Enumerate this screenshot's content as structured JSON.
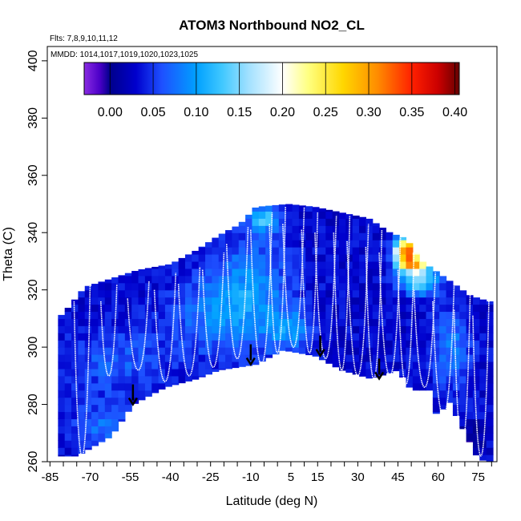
{
  "chart_data": {
    "type": "heatmap",
    "title": "ATOM3 Northbound NO2_CL",
    "annotations": {
      "flights": "Flts: 7,8,9,10,11,12",
      "dates": "MMDD: 1014,1017,1019,1020,1023,1025"
    },
    "xlabel": "Latitude (deg N)",
    "ylabel": "Theta (C)",
    "xlim": [
      -86,
      82
    ],
    "ylim": [
      260,
      405
    ],
    "x_ticks": [
      -85,
      -70,
      -55,
      -40,
      -25,
      -10,
      5,
      15,
      30,
      45,
      60,
      75
    ],
    "x_tick_labels": [
      "-85",
      "-70",
      "-55",
      "-40",
      "-25",
      "-10",
      "5",
      "15",
      "30",
      "45",
      "60",
      "75"
    ],
    "y_ticks": [
      260,
      280,
      300,
      320,
      340,
      360,
      380,
      400
    ],
    "y_tick_labels": [
      "260",
      "280",
      "300",
      "320",
      "340",
      "360",
      "380",
      "400"
    ],
    "colorbar": {
      "range": [
        -0.03,
        0.405
      ],
      "ticks": [
        0.0,
        0.05,
        0.1,
        0.15,
        0.2,
        0.25,
        0.3,
        0.35,
        0.4
      ],
      "tick_labels": [
        "0.00",
        "0.05",
        "0.10",
        "0.15",
        "0.20",
        "0.25",
        "0.30",
        "0.35",
        "0.40"
      ],
      "stops": [
        {
          "v": -0.03,
          "c": "#8a2be2"
        },
        {
          "v": -0.012,
          "c": "#4b00c8"
        },
        {
          "v": 0.0,
          "c": "#00008b"
        },
        {
          "v": 0.03,
          "c": "#0000cd"
        },
        {
          "v": 0.06,
          "c": "#1e50ff"
        },
        {
          "v": 0.1,
          "c": "#00a0ff"
        },
        {
          "v": 0.13,
          "c": "#40c8ff"
        },
        {
          "v": 0.16,
          "c": "#a0e0ff"
        },
        {
          "v": 0.2,
          "c": "#ffffff"
        },
        {
          "v": 0.23,
          "c": "#ffff80"
        },
        {
          "v": 0.27,
          "c": "#ffd700"
        },
        {
          "v": 0.31,
          "c": "#ff8c00"
        },
        {
          "v": 0.35,
          "c": "#ff2000"
        },
        {
          "v": 0.38,
          "c": "#cc0000"
        },
        {
          "v": 0.405,
          "c": "#660000"
        }
      ]
    },
    "envelope_bottom": [
      [
        -82,
        262
      ],
      [
        -75,
        262
      ],
      [
        -62,
        269
      ],
      [
        -54,
        280
      ],
      [
        -42,
        286
      ],
      [
        -30,
        289
      ],
      [
        -22,
        292
      ],
      [
        -8,
        294
      ],
      [
        2,
        299
      ],
      [
        14,
        297
      ],
      [
        24,
        292
      ],
      [
        35,
        289
      ],
      [
        45,
        292
      ],
      [
        50,
        285
      ],
      [
        58,
        285
      ],
      [
        60,
        272
      ],
      [
        63,
        283
      ],
      [
        75,
        261
      ],
      [
        79,
        260
      ]
    ],
    "envelope_top": [
      [
        -82,
        310
      ],
      [
        -78,
        314
      ],
      [
        -72,
        321
      ],
      [
        -62,
        324
      ],
      [
        -52,
        327
      ],
      [
        -40,
        329
      ],
      [
        -30,
        334
      ],
      [
        -22,
        339
      ],
      [
        -14,
        343
      ],
      [
        -8,
        349
      ],
      [
        4,
        350
      ],
      [
        14,
        349
      ],
      [
        24,
        347
      ],
      [
        34,
        345
      ],
      [
        42,
        340
      ],
      [
        48,
        338
      ],
      [
        54,
        330
      ],
      [
        60,
        326
      ],
      [
        66,
        322
      ],
      [
        72,
        318
      ],
      [
        79,
        316
      ]
    ],
    "field": {
      "base": 0.03,
      "blobs": [
        {
          "x": -24,
          "y": 312,
          "sx": 12,
          "sy": 10,
          "a": 0.045
        },
        {
          "x": -9,
          "y": 320,
          "sx": 10,
          "sy": 14,
          "a": 0.055
        },
        {
          "x": -5,
          "y": 345,
          "sx": 4,
          "sy": 3,
          "a": 0.09
        },
        {
          "x": 5,
          "y": 306,
          "sx": 6,
          "sy": 5,
          "a": 0.06
        },
        {
          "x": -60,
          "y": 295,
          "sx": 14,
          "sy": 8,
          "a": 0.035
        },
        {
          "x": -65,
          "y": 272,
          "sx": 8,
          "sy": 6,
          "a": 0.045
        },
        {
          "x": 48,
          "y": 334,
          "sx": 3,
          "sy": 3,
          "a": 0.3
        },
        {
          "x": 51,
          "y": 329,
          "sx": 4,
          "sy": 2,
          "a": 0.24
        },
        {
          "x": 53,
          "y": 323,
          "sx": 5,
          "sy": 3,
          "a": 0.12
        },
        {
          "x": 65,
          "y": 300,
          "sx": 5,
          "sy": 10,
          "a": 0.05
        },
        {
          "x": 72,
          "y": 269,
          "sx": 3,
          "sy": 3,
          "a": -0.035
        }
      ]
    },
    "profiles": [
      {
        "lat": -73,
        "top": 322,
        "bottom": 262,
        "w": 3
      },
      {
        "lat": -63,
        "top": 322,
        "bottom": 290,
        "w": 3
      },
      {
        "lat": -52,
        "top": 323,
        "bottom": 292,
        "w": 4
      },
      {
        "lat": -42,
        "top": 326,
        "bottom": 288,
        "w": 4
      },
      {
        "lat": -33,
        "top": 328,
        "bottom": 290,
        "w": 4
      },
      {
        "lat": -24,
        "top": 333,
        "bottom": 293,
        "w": 4
      },
      {
        "lat": -15,
        "top": 342,
        "bottom": 296,
        "w": 4
      },
      {
        "lat": -6,
        "top": 347,
        "bottom": 294,
        "w": 4
      },
      {
        "lat": 0,
        "top": 349,
        "bottom": 298,
        "w": 3
      },
      {
        "lat": 6,
        "top": 349,
        "bottom": 300,
        "w": 4
      },
      {
        "lat": 12,
        "top": 347,
        "bottom": 298,
        "w": 3
      },
      {
        "lat": 18,
        "top": 346,
        "bottom": 296,
        "w": 4
      },
      {
        "lat": 24,
        "top": 346,
        "bottom": 292,
        "w": 3
      },
      {
        "lat": 30,
        "top": 343,
        "bottom": 290,
        "w": 4
      },
      {
        "lat": 36,
        "top": 341,
        "bottom": 289,
        "w": 3
      },
      {
        "lat": 42,
        "top": 339,
        "bottom": 290,
        "w": 4
      },
      {
        "lat": 48,
        "top": 333,
        "bottom": 287,
        "w": 3
      },
      {
        "lat": 55,
        "top": 326,
        "bottom": 286,
        "w": 4
      },
      {
        "lat": 62,
        "top": 322,
        "bottom": 276,
        "w": 4
      },
      {
        "lat": 69,
        "top": 319,
        "bottom": 266,
        "w": 3
      },
      {
        "lat": 76,
        "top": 317,
        "bottom": 262,
        "w": 3
      }
    ],
    "arrows": [
      {
        "lat": -54,
        "theta_start": 287,
        "theta_end": 280
      },
      {
        "lat": -10,
        "theta_start": 301,
        "theta_end": 294
      },
      {
        "lat": 16,
        "theta_start": 304,
        "theta_end": 297
      },
      {
        "lat": 38,
        "theta_start": 296,
        "theta_end": 289
      }
    ]
  }
}
